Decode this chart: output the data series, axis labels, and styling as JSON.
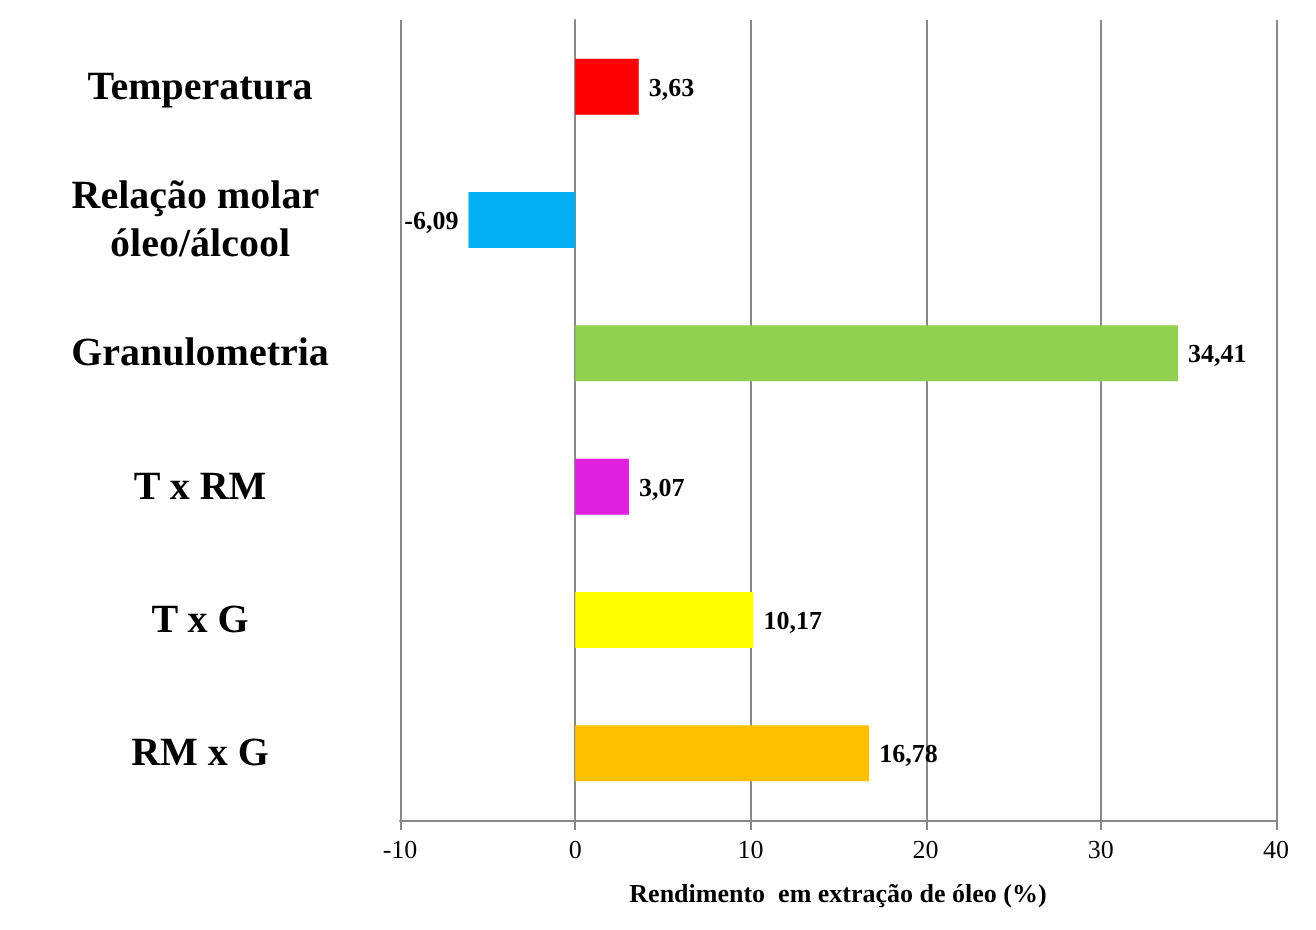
{
  "chart_data": {
    "type": "bar",
    "orientation": "horizontal",
    "xlabel": "Rendimento  em extração de óleo (%)",
    "categories": [
      "Temperatura",
      "Relação molar óleo/álcool",
      "Granulometria",
      "T x RM",
      "T x G",
      "RM x G"
    ],
    "values": [
      3.63,
      -6.09,
      34.41,
      3.07,
      10.17,
      16.78
    ],
    "colors": [
      "#ff0000",
      "#00b0f0",
      "#92d050",
      "#e020e0",
      "#ffff00",
      "#ffc000"
    ],
    "value_labels": [
      "3,63",
      "-6,09",
      "34,41",
      "3,07",
      "10,17",
      "16,78"
    ],
    "xlim": [
      -10,
      40
    ],
    "xticks": [
      -10,
      0,
      10,
      20,
      30,
      40
    ],
    "grid": "x"
  }
}
